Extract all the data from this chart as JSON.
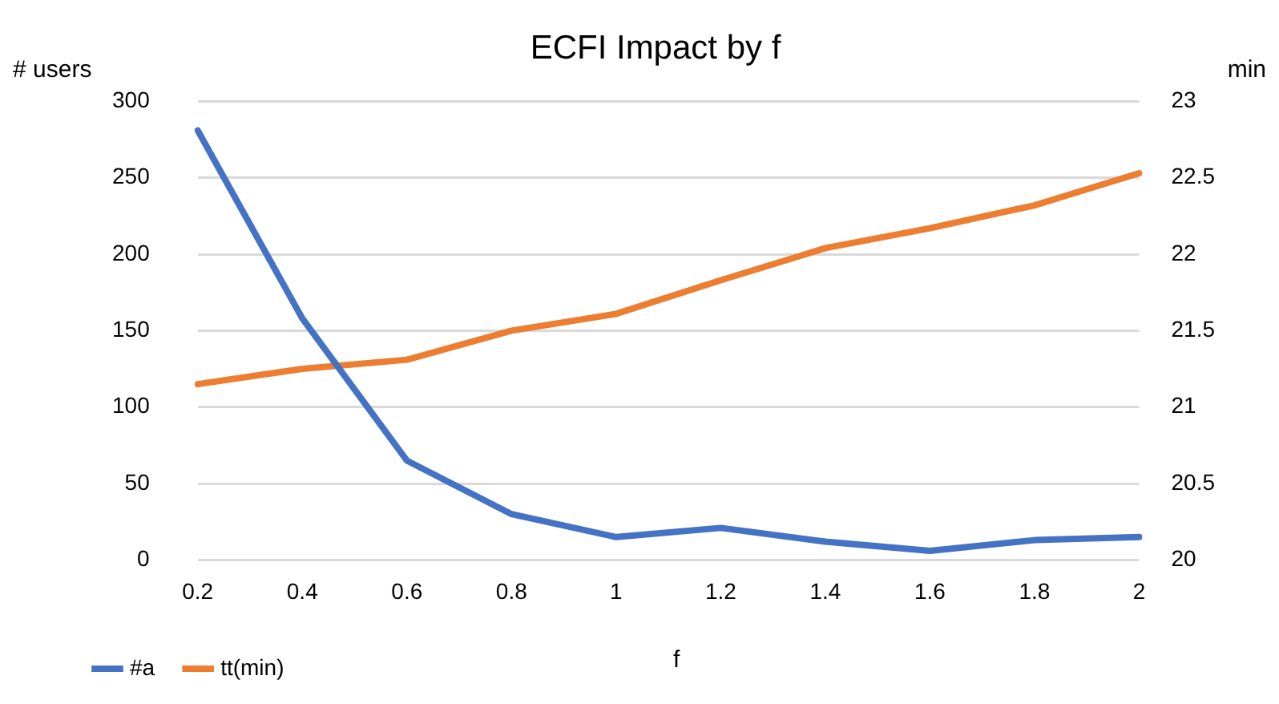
{
  "chart_data": {
    "type": "line",
    "title": "ECFI Impact by f",
    "xlabel": "f",
    "ylabel": "# users",
    "y2label": "min",
    "categories": [
      "0.2",
      "0.4",
      "0.6",
      "0.8",
      "1",
      "1.2",
      "1.4",
      "1.6",
      "1.8",
      "2"
    ],
    "series": [
      {
        "name": "#a",
        "color": "#4472c4",
        "values": [
          281,
          158,
          65,
          30,
          15,
          21,
          12,
          6,
          13,
          15
        ]
      },
      {
        "name": "tt(min)",
        "color": "#ed7d31",
        "axis": "y2",
        "values": [
          21.15,
          21.25,
          21.31,
          21.5,
          21.61,
          21.83,
          22.04,
          22.17,
          22.32,
          22.53
        ]
      }
    ],
    "ylim": [
      0,
      300
    ],
    "yticks": [
      0,
      50,
      100,
      150,
      200,
      250,
      300
    ],
    "y2lim": [
      20,
      23
    ],
    "y2ticks": [
      20,
      20.5,
      21,
      21.5,
      22,
      22.5,
      23
    ],
    "grid": "y",
    "legend": "bottom",
    "marker": "none",
    "line_style": "solid"
  }
}
